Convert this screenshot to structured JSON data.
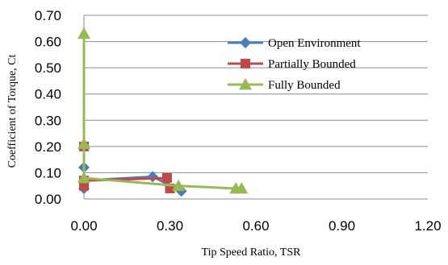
{
  "chart_data": {
    "type": "scatter",
    "xlabel": "Tip Speed  Ratio, TSR",
    "ylabel": "Coefficient of Torque, Ct",
    "xlim": [
      0,
      1.2
    ],
    "ylim": [
      0,
      0.7
    ],
    "x_ticks": [
      "0.00",
      "0.30",
      "0.60",
      "0.90",
      "1.20"
    ],
    "y_ticks": [
      "0.00",
      "0.10",
      "0.20",
      "0.30",
      "0.40",
      "0.50",
      "0.60",
      "0.70"
    ],
    "grid": "horizontal",
    "legend_position": "top-right",
    "series": [
      {
        "name": "Open Environment",
        "color": "#4a7ebb",
        "marker": "diamond",
        "x": [
          0.0,
          0.0,
          0.0,
          0.24,
          0.34
        ],
        "y": [
          0.04,
          0.12,
          0.07,
          0.085,
          0.03
        ]
      },
      {
        "name": "Partially Bounded",
        "color": "#be4b48",
        "marker": "square",
        "x": [
          0.0,
          0.0,
          0.0,
          0.29,
          0.3
        ],
        "y": [
          0.2,
          0.05,
          0.07,
          0.08,
          0.04
        ]
      },
      {
        "name": "Fully Bounded",
        "color": "#98b954",
        "marker": "triangle",
        "x": [
          0.0,
          0.0,
          0.0,
          0.33,
          0.53,
          0.55
        ],
        "y": [
          0.63,
          0.21,
          0.08,
          0.05,
          0.04,
          0.04
        ]
      }
    ]
  }
}
